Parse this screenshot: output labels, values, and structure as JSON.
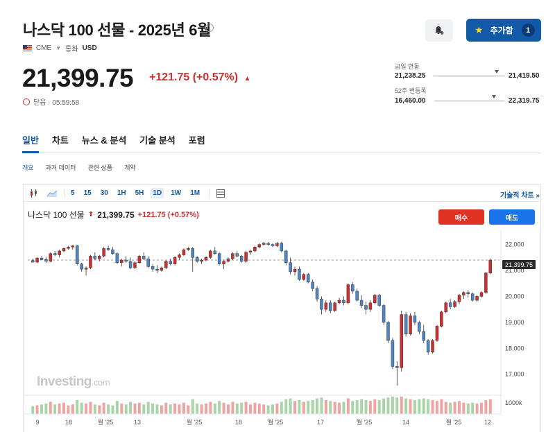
{
  "header": {
    "title": "나스닥 100 선물 - 2025년 6월",
    "exchange": "CME",
    "currency_label": "통화",
    "currency": "USD",
    "add_button_label": "추가함",
    "add_count": "1"
  },
  "quote": {
    "price": "21,399.75",
    "change": "+121.75 (+0.57%)",
    "status": "닫음 · 05:59:58",
    "day_range": {
      "label": "금일 변동",
      "low": "21,238.25",
      "high": "21,419.50",
      "position": 0.88
    },
    "week52_range": {
      "label": "52주 변동폭",
      "low": "16,460.00",
      "high": "22,319.75",
      "position": 0.84
    }
  },
  "nav": {
    "tabs": [
      "일반",
      "차트",
      "뉴스 & 분석",
      "기술 분석",
      "포럼"
    ],
    "active_tab": "일반",
    "subtabs": [
      "개요",
      "과거 데이터",
      "관련 상품",
      "계약"
    ]
  },
  "chart_toolbar": {
    "timeframes": [
      "5",
      "15",
      "30",
      "1H",
      "5H",
      "1D",
      "1W",
      "1M"
    ],
    "active_timeframe": "1D",
    "tech_link": "기술적 차트 »"
  },
  "chart_legend": {
    "symbol": "나스닥 100 선물",
    "price": "21,399.75",
    "change": "+121.75 (+0.57%)",
    "buy_label": "매수",
    "sell_label": "매도",
    "watermark": "Investing",
    "watermark_suffix": ".com"
  },
  "chart_data": {
    "type": "candlestick",
    "y_ticks": [
      "22,000",
      "21,000",
      "20,000",
      "19,000",
      "18,000",
      "17,000"
    ],
    "y_tick_values": [
      22000,
      21000,
      20000,
      19000,
      18000,
      17000
    ],
    "ylim": [
      16350,
      22550
    ],
    "current_price_label": "21,399.75",
    "current_price": 21399.75,
    "volume_label": "1000k",
    "x_ticks": [
      "9",
      "18",
      "월 '25",
      "13",
      "월 '25",
      "18",
      "월 '25",
      "17",
      "월 '25",
      "14",
      "월 '25",
      "12"
    ],
    "colors": {
      "up": "#d12e2e",
      "down": "#4f86c6",
      "vol_up": "#f0a3a3",
      "vol_down": "#a8d5a8"
    },
    "candles": [
      [
        21380,
        21450,
        21300,
        21320
      ],
      [
        21320,
        21500,
        21280,
        21480
      ],
      [
        21480,
        21560,
        21400,
        21420
      ],
      [
        21420,
        21520,
        21300,
        21350
      ],
      [
        21350,
        21700,
        21320,
        21650
      ],
      [
        21650,
        21750,
        21550,
        21600
      ],
      [
        21600,
        21800,
        21500,
        21750
      ],
      [
        21750,
        21880,
        21700,
        21850
      ],
      [
        21850,
        21950,
        21800,
        21900
      ],
      [
        21900,
        21980,
        21800,
        21950
      ],
      [
        21950,
        21980,
        21200,
        21250
      ],
      [
        21250,
        21300,
        20950,
        21050
      ],
      [
        21050,
        21150,
        20800,
        21100
      ],
      [
        21100,
        21600,
        21050,
        21550
      ],
      [
        21550,
        21700,
        21400,
        21450
      ],
      [
        21450,
        21600,
        21350,
        21550
      ],
      [
        21550,
        21900,
        21500,
        21850
      ],
      [
        21850,
        21950,
        21750,
        21800
      ],
      [
        21800,
        21900,
        21600,
        21650
      ],
      [
        21650,
        21700,
        21250,
        21300
      ],
      [
        21300,
        21450,
        21150,
        21400
      ],
      [
        21400,
        21550,
        21300,
        21350
      ],
      [
        21350,
        21500,
        21050,
        21100
      ],
      [
        21100,
        21350,
        21050,
        21300
      ],
      [
        21300,
        21600,
        21250,
        21550
      ],
      [
        21550,
        21700,
        21400,
        21450
      ],
      [
        21450,
        21550,
        21100,
        21150
      ],
      [
        21150,
        21250,
        20950,
        21050
      ],
      [
        21050,
        21200,
        20900,
        21000
      ],
      [
        21000,
        21150,
        20950,
        21100
      ],
      [
        21100,
        21400,
        21050,
        21350
      ],
      [
        21350,
        21450,
        21200,
        21250
      ],
      [
        21250,
        21550,
        21200,
        21500
      ],
      [
        21500,
        21650,
        21400,
        21600
      ],
      [
        21600,
        21850,
        21550,
        21800
      ],
      [
        21800,
        21900,
        21750,
        21850
      ],
      [
        21850,
        21900,
        20950,
        21500
      ],
      [
        21500,
        21550,
        21300,
        21350
      ],
      [
        21350,
        21450,
        21250,
        21400
      ],
      [
        21400,
        21550,
        21350,
        21500
      ],
      [
        21500,
        21800,
        21450,
        21750
      ],
      [
        21750,
        21900,
        21600,
        21650
      ],
      [
        21650,
        21700,
        21200,
        21250
      ],
      [
        21250,
        21400,
        21050,
        21350
      ],
      [
        21350,
        21500,
        21300,
        21450
      ],
      [
        21450,
        21700,
        21400,
        21650
      ],
      [
        21650,
        21750,
        21500,
        21550
      ],
      [
        21550,
        21600,
        21300,
        21350
      ],
      [
        21350,
        21750,
        21300,
        21700
      ],
      [
        21700,
        21800,
        21600,
        21750
      ],
      [
        21750,
        21950,
        21700,
        21900
      ],
      [
        21900,
        22050,
        21850,
        22000
      ],
      [
        22000,
        22100,
        21950,
        22050
      ],
      [
        22050,
        22100,
        21950,
        22000
      ],
      [
        22000,
        22050,
        21900,
        21950
      ],
      [
        21950,
        22100,
        21900,
        22050
      ],
      [
        22050,
        22100,
        21700,
        21750
      ],
      [
        21750,
        21800,
        21200,
        21300
      ],
      [
        21300,
        21500,
        20850,
        20950
      ],
      [
        20950,
        21150,
        20800,
        21050
      ],
      [
        21050,
        21150,
        20600,
        20650
      ],
      [
        20650,
        20900,
        20600,
        20850
      ],
      [
        20850,
        20900,
        20500,
        20550
      ],
      [
        20550,
        20650,
        20200,
        20300
      ],
      [
        20300,
        20400,
        19800,
        19900
      ],
      [
        19900,
        20000,
        19300,
        19500
      ],
      [
        19500,
        19850,
        19400,
        19750
      ],
      [
        19750,
        19850,
        19350,
        19450
      ],
      [
        19450,
        19800,
        19400,
        19750
      ],
      [
        19750,
        19950,
        19700,
        19850
      ],
      [
        19850,
        20000,
        19650,
        19750
      ],
      [
        19750,
        20500,
        19700,
        20450
      ],
      [
        20450,
        20550,
        20100,
        20200
      ],
      [
        20200,
        20300,
        19800,
        19850
      ],
      [
        19850,
        20050,
        19550,
        19650
      ],
      [
        19650,
        19800,
        19300,
        19500
      ],
      [
        19500,
        19850,
        19400,
        19750
      ],
      [
        19750,
        20100,
        19700,
        20050
      ],
      [
        20050,
        20100,
        19600,
        19650
      ],
      [
        19650,
        19700,
        18900,
        19000
      ],
      [
        19000,
        19050,
        18200,
        18300
      ],
      [
        18300,
        18400,
        17200,
        17300
      ],
      [
        17300,
        17500,
        16560,
        17250
      ],
      [
        17250,
        19450,
        17100,
        19300
      ],
      [
        19300,
        19400,
        18450,
        18550
      ],
      [
        18550,
        19350,
        18500,
        19250
      ],
      [
        19250,
        19400,
        18900,
        19000
      ],
      [
        19000,
        19050,
        18550,
        18650
      ],
      [
        18650,
        18900,
        18200,
        18300
      ],
      [
        18300,
        18350,
        17750,
        17850
      ],
      [
        17850,
        18350,
        17800,
        18300
      ],
      [
        18300,
        18900,
        18250,
        18850
      ],
      [
        18850,
        19450,
        18800,
        19400
      ],
      [
        19400,
        19800,
        19350,
        19750
      ],
      [
        19750,
        19900,
        19500,
        19600
      ],
      [
        19600,
        19850,
        19550,
        19800
      ],
      [
        19800,
        20100,
        19700,
        20050
      ],
      [
        20050,
        20200,
        19900,
        20150
      ],
      [
        20150,
        20250,
        19950,
        20100
      ],
      [
        20100,
        20150,
        19800,
        19850
      ],
      [
        19850,
        20050,
        19800,
        20000
      ],
      [
        20000,
        20200,
        19950,
        20150
      ],
      [
        20150,
        20950,
        20100,
        20900
      ],
      [
        20900,
        21450,
        20850,
        21400
      ]
    ],
    "volumes": [
      0.45,
      0.5,
      0.55,
      0.6,
      0.7,
      0.55,
      0.6,
      0.65,
      0.5,
      0.55,
      0.8,
      0.65,
      0.6,
      0.7,
      0.55,
      0.5,
      0.65,
      0.55,
      0.5,
      0.75,
      0.6,
      0.55,
      0.7,
      0.6,
      0.65,
      0.55,
      0.7,
      0.6,
      0.55,
      0.5,
      0.65,
      0.55,
      0.6,
      0.55,
      0.65,
      0.5,
      0.85,
      0.6,
      0.55,
      0.6,
      0.7,
      0.6,
      0.75,
      0.65,
      0.55,
      0.7,
      0.6,
      0.65,
      0.7,
      0.55,
      0.65,
      0.6,
      0.55,
      0.5,
      0.55,
      0.6,
      0.7,
      0.85,
      0.9,
      0.75,
      0.8,
      0.7,
      0.75,
      0.8,
      0.9,
      0.95,
      0.8,
      0.75,
      0.7,
      0.65,
      0.7,
      0.9,
      0.75,
      0.8,
      0.85,
      0.8,
      0.75,
      0.85,
      0.8,
      0.9,
      0.95,
      1.0,
      0.95,
      1.0,
      0.9,
      0.85,
      0.8,
      0.85,
      0.9,
      0.85,
      0.8,
      0.75,
      0.85,
      0.7,
      0.65,
      0.7,
      0.75,
      0.65,
      0.6,
      0.65,
      0.6,
      0.65,
      0.8,
      0.85
    ]
  }
}
